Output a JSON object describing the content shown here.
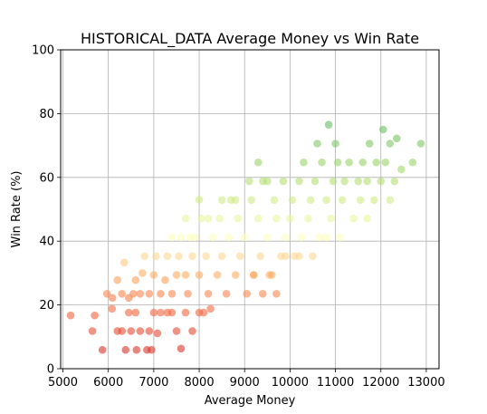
{
  "chart_data": {
    "type": "scatter",
    "title": "HISTORICAL_DATA Average Money vs Win Rate",
    "xlabel": "Average Money",
    "ylabel": "Win Rate (%)",
    "xlim": [
      4950,
      13280
    ],
    "ylim": [
      0,
      100
    ],
    "xticks": [
      5000,
      6000,
      7000,
      8000,
      9000,
      10000,
      11000,
      12000,
      13000
    ],
    "yticks": [
      0,
      20,
      40,
      60,
      80,
      100
    ],
    "grid": true,
    "colormap": "RdYlGn",
    "color_by": "y",
    "color_range": [
      5,
      76
    ],
    "alpha": 0.6,
    "points": [
      [
        5170,
        16.7
      ],
      [
        5650,
        11.8
      ],
      [
        5700,
        16.7
      ],
      [
        5870,
        5.9
      ],
      [
        5970,
        23.5
      ],
      [
        6090,
        22.2
      ],
      [
        6080,
        18.8
      ],
      [
        6200,
        11.8
      ],
      [
        6300,
        11.8
      ],
      [
        6380,
        5.9
      ],
      [
        6450,
        17.6
      ],
      [
        6500,
        11.8
      ],
      [
        6600,
        17.6
      ],
      [
        6620,
        5.9
      ],
      [
        6700,
        11.8
      ],
      [
        6850,
        5.9
      ],
      [
        6900,
        11.8
      ],
      [
        6950,
        5.9
      ],
      [
        7000,
        17.6
      ],
      [
        7080,
        11.1
      ],
      [
        7150,
        17.6
      ],
      [
        7300,
        17.6
      ],
      [
        7400,
        17.6
      ],
      [
        7500,
        11.8
      ],
      [
        7600,
        6.3
      ],
      [
        7700,
        17.6
      ],
      [
        7850,
        11.8
      ],
      [
        8000,
        17.6
      ],
      [
        8100,
        17.6
      ],
      [
        8250,
        18.8
      ],
      [
        6200,
        27.8
      ],
      [
        6300,
        23.5
      ],
      [
        6350,
        33.3
      ],
      [
        6450,
        22.2
      ],
      [
        6550,
        23.5
      ],
      [
        6600,
        27.8
      ],
      [
        6700,
        23.5
      ],
      [
        6750,
        30.0
      ],
      [
        6800,
        35.3
      ],
      [
        6900,
        23.5
      ],
      [
        7000,
        29.4
      ],
      [
        7050,
        35.3
      ],
      [
        7150,
        23.5
      ],
      [
        7250,
        27.8
      ],
      [
        7300,
        35.3
      ],
      [
        7400,
        23.5
      ],
      [
        7500,
        29.4
      ],
      [
        7550,
        35.3
      ],
      [
        7600,
        41.2
      ],
      [
        7700,
        29.4
      ],
      [
        7750,
        23.5
      ],
      [
        7850,
        35.3
      ],
      [
        7900,
        41.2
      ],
      [
        8000,
        29.4
      ],
      [
        8050,
        47.1
      ],
      [
        8150,
        35.3
      ],
      [
        8200,
        23.5
      ],
      [
        8300,
        41.2
      ],
      [
        8400,
        29.4
      ],
      [
        8450,
        47.1
      ],
      [
        8500,
        35.3
      ],
      [
        8600,
        23.5
      ],
      [
        8650,
        41.2
      ],
      [
        8700,
        52.9
      ],
      [
        8800,
        29.4
      ],
      [
        8850,
        47.1
      ],
      [
        8900,
        35.3
      ],
      [
        9000,
        41.2
      ],
      [
        9050,
        23.5
      ],
      [
        9150,
        52.9
      ],
      [
        9200,
        29.4
      ],
      [
        9300,
        47.1
      ],
      [
        9350,
        35.3
      ],
      [
        9400,
        58.8
      ],
      [
        9500,
        41.2
      ],
      [
        9550,
        29.4
      ],
      [
        9650,
        52.9
      ],
      [
        9700,
        47.1
      ],
      [
        9800,
        35.3
      ],
      [
        9850,
        58.8
      ],
      [
        9900,
        41.2
      ],
      [
        10000,
        47.1
      ],
      [
        10050,
        52.9
      ],
      [
        10100,
        35.3
      ],
      [
        10200,
        58.8
      ],
      [
        10250,
        41.2
      ],
      [
        10300,
        64.7
      ],
      [
        10400,
        47.1
      ],
      [
        10450,
        52.9
      ],
      [
        10500,
        35.3
      ],
      [
        10550,
        58.8
      ],
      [
        10600,
        70.6
      ],
      [
        10650,
        41.2
      ],
      [
        10700,
        64.7
      ],
      [
        10800,
        52.9
      ],
      [
        10850,
        76.5
      ],
      [
        10900,
        47.1
      ],
      [
        10950,
        58.8
      ],
      [
        11000,
        70.6
      ],
      [
        11050,
        64.7
      ],
      [
        11150,
        52.9
      ],
      [
        11200,
        58.8
      ],
      [
        11300,
        64.7
      ],
      [
        11400,
        47.1
      ],
      [
        11500,
        58.8
      ],
      [
        11550,
        52.9
      ],
      [
        11600,
        64.7
      ],
      [
        11700,
        58.8
      ],
      [
        11750,
        70.6
      ],
      [
        11850,
        52.9
      ],
      [
        11900,
        64.7
      ],
      [
        12000,
        58.8
      ],
      [
        12050,
        75.0
      ],
      [
        12100,
        64.7
      ],
      [
        12200,
        70.6
      ],
      [
        12300,
        58.8
      ],
      [
        12350,
        72.2
      ],
      [
        12450,
        62.5
      ],
      [
        12700,
        64.7
      ],
      [
        12880,
        70.6
      ],
      [
        9300,
        64.7
      ],
      [
        9500,
        58.8
      ],
      [
        9100,
        58.8
      ],
      [
        8800,
        52.9
      ],
      [
        8500,
        52.9
      ],
      [
        8200,
        47.1
      ],
      [
        7800,
        41.2
      ],
      [
        7400,
        41.2
      ],
      [
        8000,
        53.0
      ],
      [
        7700,
        47.1
      ],
      [
        9700,
        23.5
      ],
      [
        9400,
        23.5
      ],
      [
        9200,
        29.4
      ],
      [
        9600,
        29.4
      ],
      [
        9900,
        35.3
      ],
      [
        10200,
        35.3
      ],
      [
        10800,
        41.2
      ],
      [
        11100,
        41.2
      ],
      [
        11700,
        47.1
      ],
      [
        12200,
        52.9
      ]
    ]
  }
}
